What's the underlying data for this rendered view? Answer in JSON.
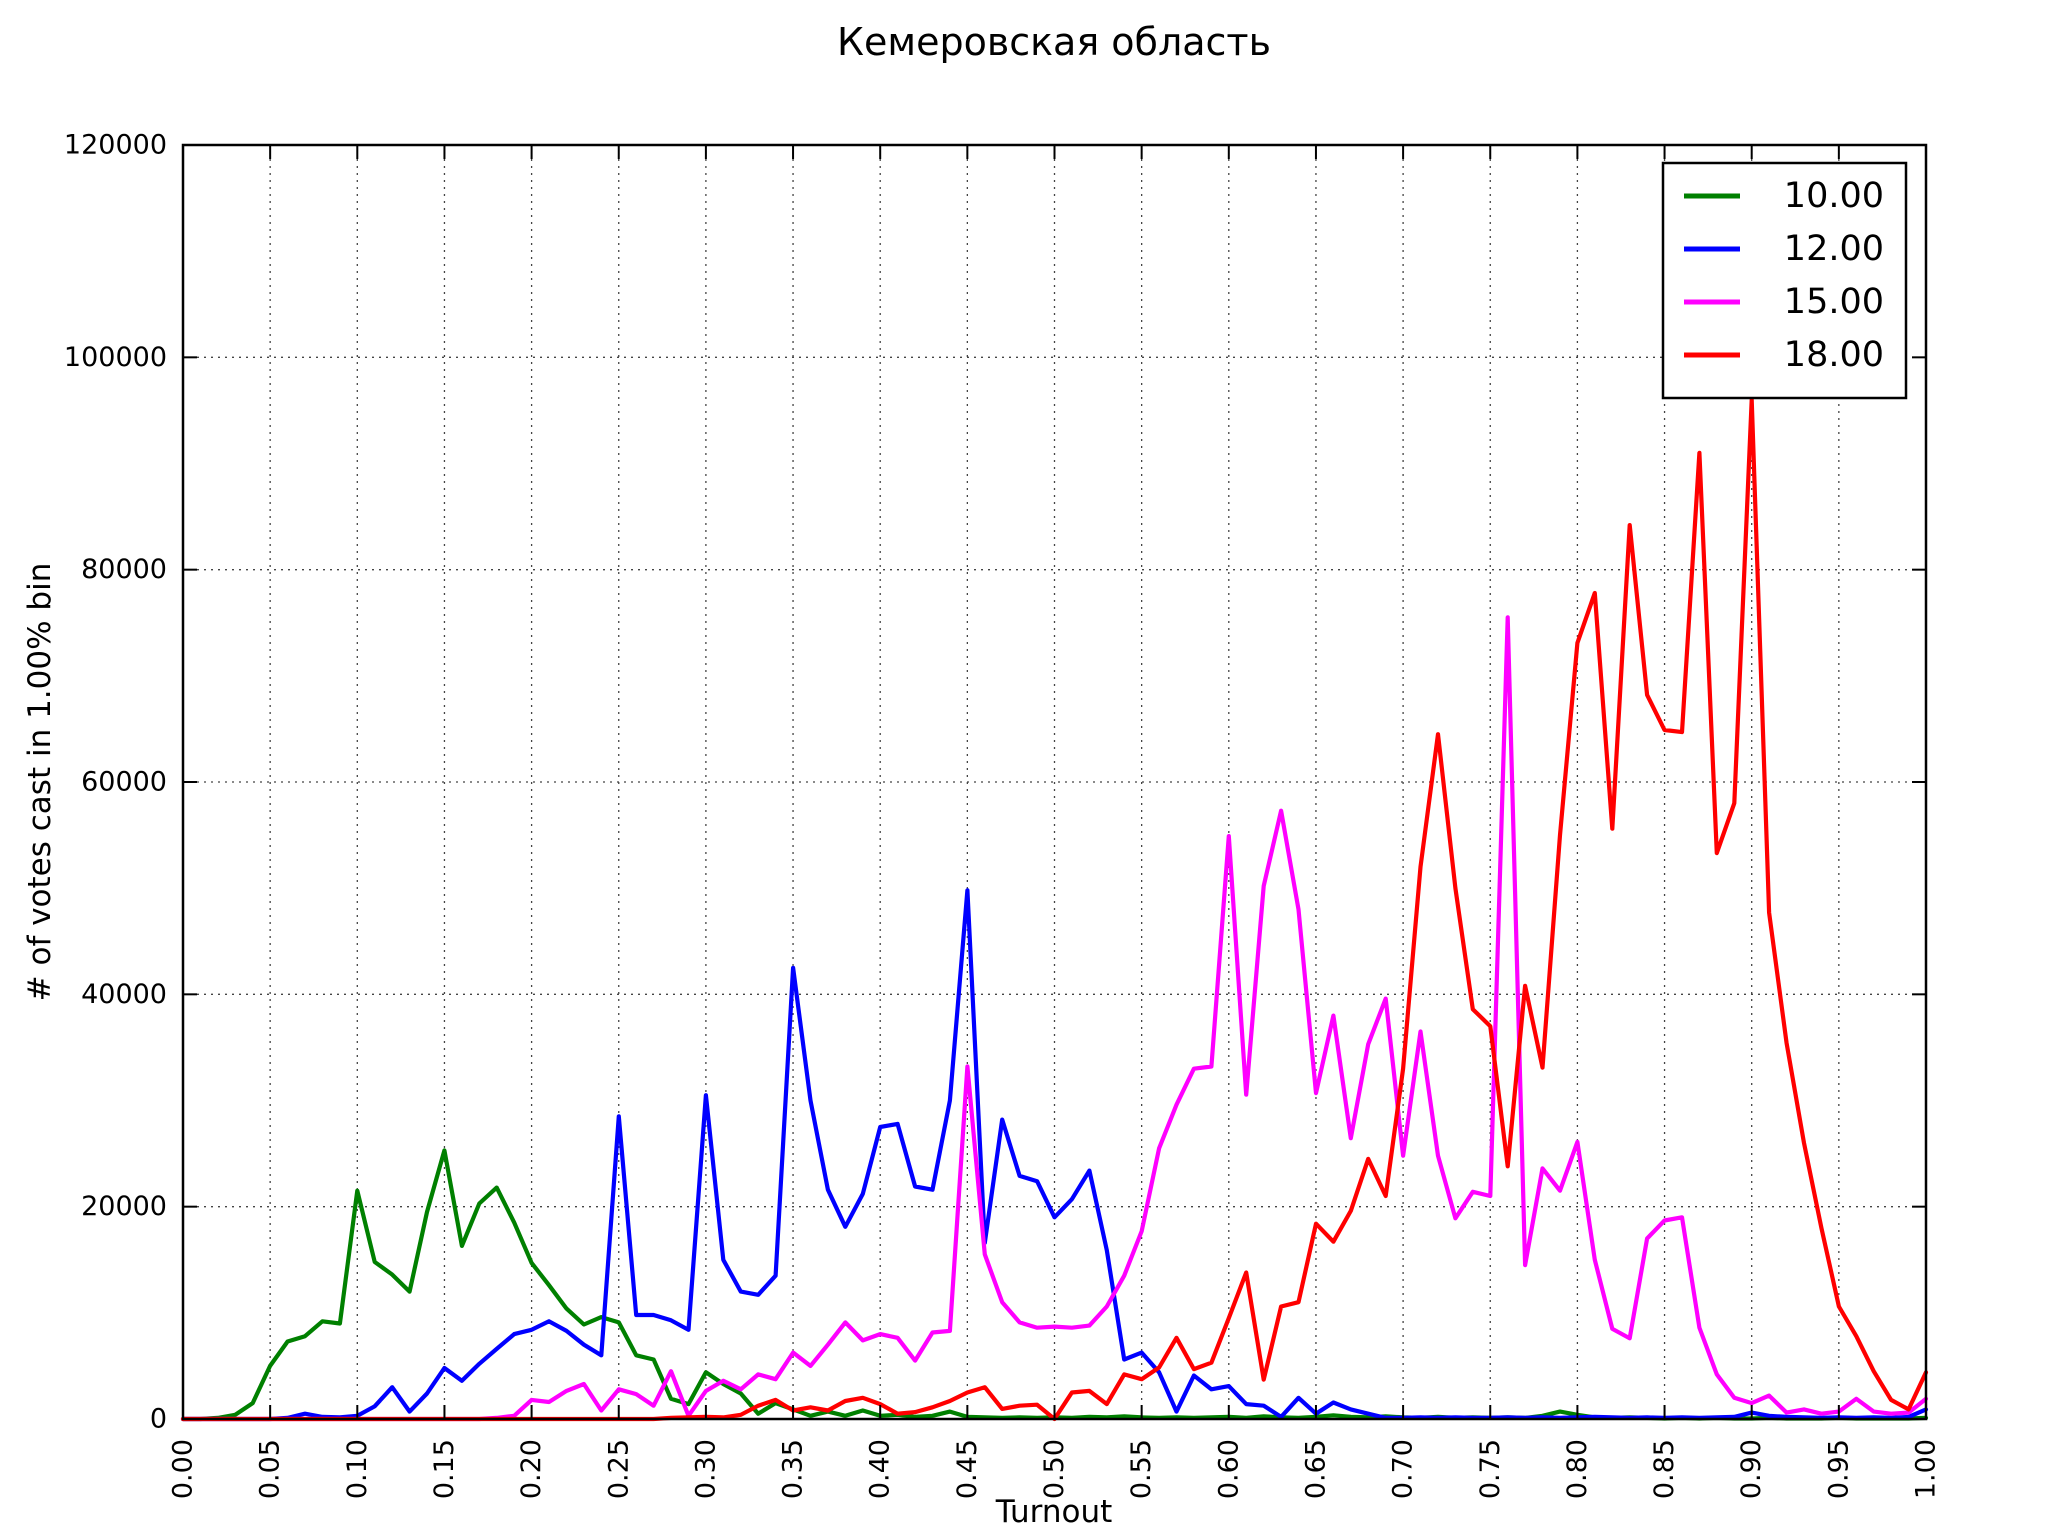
{
  "chart_data": {
    "type": "line",
    "title": "Кемеровская область",
    "xlabel": "Turnout",
    "ylabel": "# of votes cast in 1.00% bin",
    "xlim": [
      0,
      1
    ],
    "ylim": [
      0,
      120000
    ],
    "x_step": 0.01,
    "grid": true,
    "legend_position": "upper right",
    "axis_color": "#000000",
    "grid_color": "#444444",
    "background_color": "#ffffff",
    "x_ticks": [
      "0.00",
      "0.05",
      "0.10",
      "0.15",
      "0.20",
      "0.25",
      "0.30",
      "0.35",
      "0.40",
      "0.45",
      "0.50",
      "0.55",
      "0.60",
      "0.65",
      "0.70",
      "0.75",
      "0.80",
      "0.85",
      "0.90",
      "0.95",
      "1.00"
    ],
    "y_ticks": [
      "0",
      "20000",
      "40000",
      "60000",
      "80000",
      "100000",
      "120000"
    ],
    "series": [
      {
        "name": "10.00",
        "color": "#008000",
        "values": [
          0,
          0,
          100,
          400,
          1500,
          5000,
          7300,
          7800,
          9200,
          9000,
          21500,
          14800,
          13600,
          12000,
          19500,
          25300,
          16300,
          20300,
          21800,
          18500,
          14700,
          12600,
          10400,
          8900,
          9600,
          9100,
          6000,
          5600,
          1900,
          1400,
          4400,
          3300,
          2400,
          500,
          1500,
          900,
          300,
          700,
          300,
          800,
          300,
          400,
          200,
          300,
          700,
          200,
          150,
          100,
          150,
          100,
          150,
          100,
          200,
          150,
          250,
          150,
          100,
          150,
          100,
          150,
          200,
          100,
          250,
          150,
          100,
          200,
          350,
          200,
          150,
          250,
          150,
          100,
          200,
          100,
          150,
          100,
          150,
          100,
          300,
          700,
          400,
          150,
          100,
          150,
          100,
          50,
          100,
          50,
          100,
          50,
          50,
          100,
          50,
          50,
          50,
          100,
          50,
          50,
          50,
          50,
          100
        ]
      },
      {
        "name": "12.00",
        "color": "#0000ff",
        "values": [
          0,
          0,
          0,
          0,
          0,
          0,
          100,
          500,
          200,
          150,
          300,
          1200,
          3000,
          700,
          2400,
          4800,
          3600,
          5200,
          6600,
          8000,
          8400,
          9200,
          8300,
          7000,
          6000,
          28500,
          9800,
          9800,
          9300,
          8400,
          30500,
          15000,
          12000,
          11700,
          13500,
          42500,
          30000,
          21600,
          18100,
          21200,
          27500,
          27800,
          21900,
          21600,
          30000,
          49800,
          16600,
          28200,
          22900,
          22400,
          19000,
          20700,
          23400,
          15900,
          5600,
          6250,
          4400,
          700,
          4100,
          2800,
          3100,
          1400,
          1250,
          200,
          2000,
          500,
          1550,
          900,
          500,
          100,
          100,
          150,
          100,
          150,
          100,
          100,
          150,
          100,
          150,
          100,
          150,
          200,
          150,
          100,
          150,
          100,
          150,
          100,
          150,
          200,
          600,
          300,
          200,
          150,
          100,
          150,
          100,
          150,
          100,
          200,
          900
        ]
      },
      {
        "name": "15.00",
        "color": "#ff00ff",
        "values": [
          0,
          0,
          0,
          0,
          0,
          0,
          0,
          0,
          0,
          0,
          0,
          0,
          0,
          0,
          0,
          0,
          0,
          0,
          100,
          300,
          1800,
          1600,
          2650,
          3300,
          800,
          2800,
          2350,
          1250,
          4500,
          300,
          2650,
          3600,
          2800,
          4200,
          3750,
          6250,
          5000,
          7000,
          9100,
          7400,
          8000,
          7650,
          5500,
          8150,
          8300,
          33200,
          15500,
          11000,
          9100,
          8600,
          8700,
          8600,
          8800,
          10600,
          13500,
          17700,
          25500,
          29600,
          33000,
          33200,
          54900,
          30550,
          50200,
          57300,
          48000,
          30700,
          38000,
          26450,
          35300,
          39600,
          24800,
          36500,
          24800,
          18900,
          21400,
          21000,
          75500,
          14500,
          23600,
          21500,
          26100,
          15000,
          8500,
          7600,
          17000,
          18700,
          19000,
          8600,
          4200,
          2000,
          1500,
          2200,
          600,
          900,
          500,
          700,
          1900,
          700,
          500,
          600,
          1900
        ]
      },
      {
        "name": "18.00",
        "color": "#ff0000",
        "values": [
          0,
          0,
          0,
          0,
          0,
          0,
          0,
          0,
          0,
          0,
          0,
          0,
          0,
          0,
          0,
          0,
          0,
          0,
          0,
          0,
          0,
          0,
          0,
          0,
          0,
          0,
          0,
          0,
          100,
          150,
          200,
          150,
          400,
          1250,
          1800,
          800,
          1100,
          800,
          1700,
          2000,
          1400,
          500,
          650,
          1100,
          1700,
          2500,
          3000,
          950,
          1250,
          1350,
          0,
          2500,
          2650,
          1400,
          4200,
          3750,
          4850,
          7650,
          4700,
          5300,
          9500,
          13800,
          3700,
          10600,
          11000,
          18400,
          16700,
          19600,
          24500,
          21000,
          33000,
          52000,
          64500,
          50000,
          38600,
          37000,
          23800,
          40800,
          33100,
          55000,
          73100,
          77800,
          55600,
          84200,
          68200,
          64900,
          64700,
          91000,
          53300,
          58000,
          96000,
          47700,
          35400,
          26000,
          18000,
          10600,
          7800,
          4500,
          1800,
          900,
          4400
        ]
      }
    ]
  }
}
